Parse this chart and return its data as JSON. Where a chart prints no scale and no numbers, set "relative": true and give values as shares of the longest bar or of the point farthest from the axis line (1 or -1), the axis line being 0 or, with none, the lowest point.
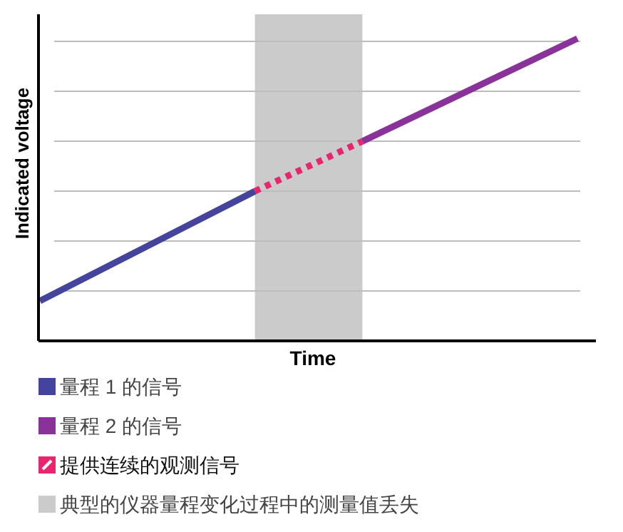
{
  "chart_data": {
    "type": "line",
    "relative": true,
    "xlabel": "Time",
    "ylabel": "Indicated voltage",
    "grid": "y",
    "legend": "bottom",
    "marker": "none",
    "categories": [
      null,
      null,
      null,
      null,
      null,
      null,
      null,
      null,
      null,
      null,
      null,
      null,
      null,
      null,
      null,
      null,
      null,
      null,
      null,
      null,
      null,
      null,
      null,
      null,
      null,
      null,
      null,
      null,
      null,
      null,
      null
    ],
    "series": [
      {
        "name": "量程 1 的信号",
        "color": "#44449c",
        "values": [
          0.132,
          null,
          null,
          null,
          null,
          null,
          null,
          null,
          null,
          null,
          null,
          null,
          0.495,
          null,
          null,
          null,
          null,
          null,
          null,
          null,
          null,
          null,
          null,
          null,
          null,
          null,
          null,
          null,
          null,
          null,
          null
        ],
        "line_style": "solid"
      },
      {
        "name": "量程 2 的信号",
        "color": "#88329a",
        "values": [
          null,
          null,
          null,
          null,
          null,
          null,
          null,
          null,
          null,
          null,
          null,
          null,
          null,
          null,
          null,
          null,
          null,
          null,
          0.66,
          null,
          null,
          null,
          null,
          null,
          null,
          null,
          null,
          null,
          null,
          null,
          1
        ],
        "line_style": "solid"
      },
      {
        "name": "提供连续的观测信号",
        "color": "#e8256e",
        "values": [
          null,
          null,
          null,
          null,
          null,
          null,
          null,
          null,
          null,
          null,
          null,
          null,
          0.495,
          null,
          null,
          null,
          null,
          null,
          0.66,
          null,
          null,
          null,
          null,
          null,
          null,
          null,
          null,
          null,
          null,
          null,
          null
        ],
        "line_style": "dotted"
      }
    ],
    "annotations": [
      "典型的仪器量程变化过程中的测量值丢失"
    ]
  }
}
